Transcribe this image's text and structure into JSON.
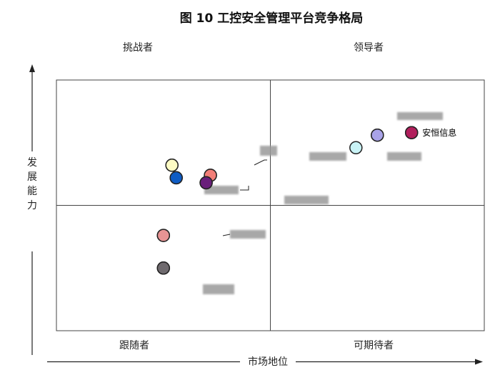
{
  "chart_data": {
    "type": "scatter",
    "title": "图 10   工控安全管理平台竞争格局",
    "xlabel": "市场地位",
    "ylabel": "发展能力",
    "xlim": [
      0,
      10
    ],
    "ylim": [
      0,
      10
    ],
    "grid": false,
    "quadrants": {
      "top_left": "挑战者",
      "top_right": "领导者",
      "bottom_left": "跟随者",
      "bottom_right": "可期待者"
    },
    "points": [
      {
        "x": 7.5,
        "y": 7.8,
        "color": "#a9a3e8",
        "label": ""
      },
      {
        "x": 7.5,
        "y": 7.8,
        "color": "#a9a3e8",
        "label": ""
      },
      {
        "x": 8.3,
        "y": 7.9,
        "color": "#b11f5c",
        "label": "安恒信息"
      },
      {
        "x": 8.3,
        "y": 7.9,
        "color": "#b11f5c",
        "label": "安恒信息"
      },
      {
        "x": 7.0,
        "y": 7.3,
        "color": "#c9f3f6",
        "label": ""
      },
      {
        "x": 2.7,
        "y": 6.6,
        "color": "#fdfbc4",
        "label": ""
      },
      {
        "x": 2.7,
        "y": 6.6,
        "color": "#fdfbc4",
        "label": ""
      },
      {
        "x": 3.6,
        "y": 6.2,
        "color": "#f27e77",
        "label": ""
      },
      {
        "x": 3.6,
        "y": 6.2,
        "color": "#f27e77",
        "label": ""
      },
      {
        "x": 2.8,
        "y": 6.1,
        "color": "#0f5cc4",
        "label": ""
      },
      {
        "x": 2.8,
        "y": 6.1,
        "color": "#0f5cc4",
        "label": ""
      },
      {
        "x": 3.5,
        "y": 5.9,
        "color": "#6a1f7b",
        "label": ""
      },
      {
        "x": 3.5,
        "y": 5.9,
        "color": "#6a1f7b",
        "label": ""
      },
      {
        "x": 2.5,
        "y": 3.8,
        "color": "#e89494",
        "label": ""
      },
      {
        "x": 2.5,
        "y": 3.8,
        "color": "#e89494",
        "label": ""
      },
      {
        "x": 2.5,
        "y": 2.5,
        "color": "#6f6a6e",
        "label": ""
      },
      {
        "x": 2.5,
        "y": 2.5,
        "color": "#6f6a6e",
        "label": ""
      }
    ]
  }
}
